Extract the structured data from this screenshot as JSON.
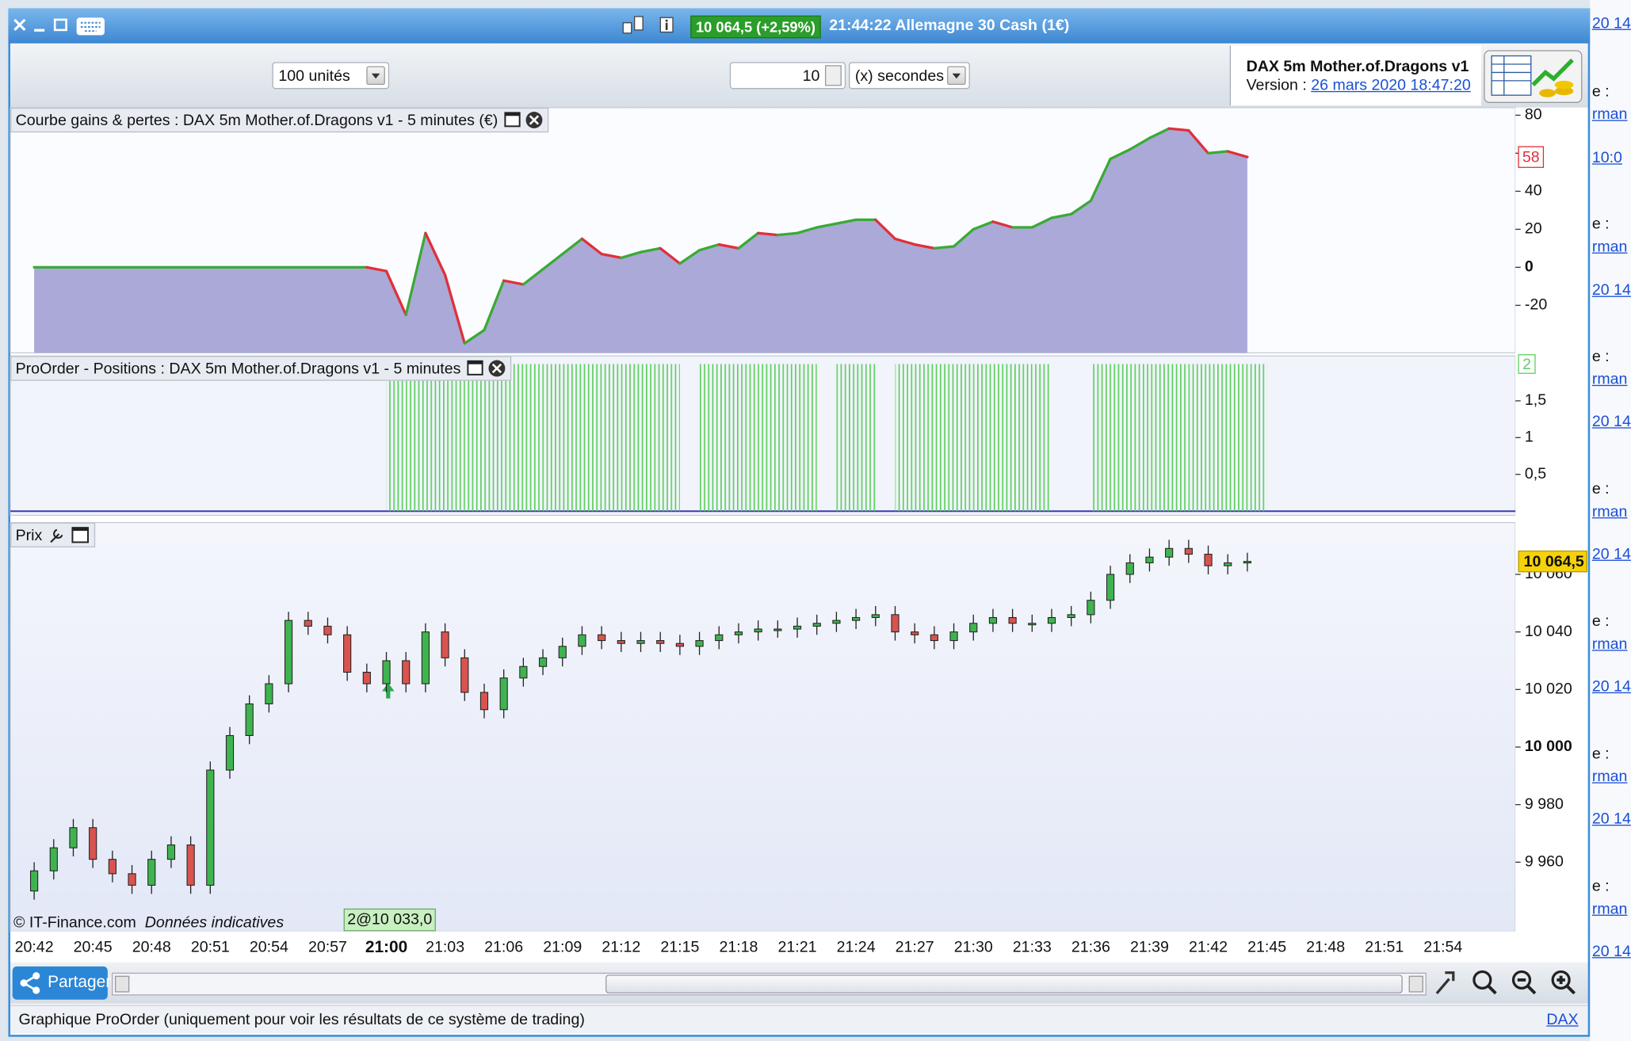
{
  "window": {
    "title_price": "10 064,5 (+2,59%)",
    "title": "21:44:22 Allemagne 30 Cash (1€)"
  },
  "toolbar": {
    "units": "100 unités",
    "interval": "10",
    "interval_unit": "(x) secondes",
    "system_name": "DAX 5m Mother.of.Dragons v1",
    "version_label": "Version :",
    "version_date": "26 mars 2020 18:47:20"
  },
  "chart_data": [
    {
      "type": "area",
      "title": "Courbe gains & pertes : DAX 5m Mother.of.Dragons v1 - 5 minutes (€)",
      "x": [
        "20:42",
        "20:59",
        "21:00",
        "21:01",
        "21:02",
        "21:03",
        "21:04",
        "21:05",
        "21:06",
        "21:07",
        "21:08",
        "21:09",
        "21:10",
        "21:11",
        "21:12",
        "21:13",
        "21:14",
        "21:15",
        "21:16",
        "21:17",
        "21:18",
        "21:19",
        "21:20",
        "21:21",
        "21:22",
        "21:23",
        "21:24",
        "21:25",
        "21:26",
        "21:27",
        "21:28",
        "21:29",
        "21:30",
        "21:31",
        "21:32",
        "21:33",
        "21:34",
        "21:35",
        "21:36",
        "21:37",
        "21:38",
        "21:39",
        "21:40",
        "21:41",
        "21:42",
        "21:43",
        "21:44"
      ],
      "series": [
        {
          "values": [
            0,
            0,
            -2,
            -25,
            18,
            -4,
            -40,
            -33,
            -7,
            -9,
            -1,
            7,
            15,
            7,
            5,
            8,
            10,
            2,
            9,
            12,
            10,
            18,
            17,
            18,
            21,
            23,
            25,
            25,
            15,
            12,
            10,
            11,
            20,
            24,
            21,
            21,
            26,
            28,
            35,
            57,
            62,
            68,
            73,
            72,
            60,
            61,
            58
          ],
          "up_color": "#3aaa35",
          "down_color": "#e0303a",
          "fill": "#aaa9d8"
        }
      ],
      "ylim": [
        -45,
        84
      ],
      "yticks": [
        -20,
        0,
        20,
        40,
        60,
        80
      ]
    },
    {
      "type": "bar",
      "title": "ProOrder - Positions : DAX 5m Mother.of.Dragons v1 - 5 minutes",
      "x": [
        "21:00",
        "21:01",
        "21:02",
        "21:03",
        "21:04",
        "21:05",
        "21:06",
        "21:07",
        "21:08",
        "21:09",
        "21:10",
        "21:11",
        "21:12",
        "21:13",
        "21:14",
        "21:15",
        "21:16",
        "21:17",
        "21:18",
        "21:19",
        "21:20",
        "21:21",
        "21:22",
        "21:23",
        "21:24",
        "21:25",
        "21:26",
        "21:27",
        "21:28",
        "21:29",
        "21:30",
        "21:31",
        "21:32",
        "21:33",
        "21:34",
        "21:35",
        "21:36",
        "21:37",
        "21:38",
        "21:39",
        "21:40",
        "21:41",
        "21:42",
        "21:43",
        "21:44"
      ],
      "values": [
        2,
        2,
        2,
        2,
        2,
        2,
        2,
        2,
        2,
        2,
        2,
        2,
        2,
        2,
        2,
        0,
        2,
        2,
        2,
        2,
        2,
        2,
        0,
        2,
        2,
        0,
        2,
        2,
        2,
        2,
        2,
        2,
        2,
        2,
        0,
        0,
        2,
        2,
        2,
        2,
        2,
        2,
        2,
        2,
        2
      ],
      "color": "#5fcf5f",
      "ylim": [
        0,
        2.11
      ],
      "yticks": [
        {
          "value": 0.5,
          "label": "0,5"
        },
        1,
        {
          "value": 1.5,
          "label": "1,5"
        }
      ]
    },
    {
      "type": "candlestick",
      "title": "Prix",
      "x": [
        "20:42",
        "20:43",
        "20:44",
        "20:45",
        "20:46",
        "20:47",
        "20:48",
        "20:49",
        "20:50",
        "20:51",
        "20:52",
        "20:53",
        "20:54",
        "20:55",
        "20:56",
        "20:57",
        "20:58",
        "20:59",
        "21:00",
        "21:01",
        "21:02",
        "21:03",
        "21:04",
        "21:05",
        "21:06",
        "21:07",
        "21:08",
        "21:09",
        "21:10",
        "21:11",
        "21:12",
        "21:13",
        "21:14",
        "21:15",
        "21:16",
        "21:17",
        "21:18",
        "21:19",
        "21:20",
        "21:21",
        "21:22",
        "21:23",
        "21:24",
        "21:25",
        "21:26",
        "21:27",
        "21:28",
        "21:29",
        "21:30",
        "21:31",
        "21:32",
        "21:33",
        "21:34",
        "21:35",
        "21:36",
        "21:37",
        "21:38",
        "21:39",
        "21:40",
        "21:41",
        "21:42",
        "21:43",
        "21:44"
      ],
      "open": [
        9950,
        9957,
        9965,
        9972,
        9961,
        9956,
        9952,
        9961,
        9966,
        9952,
        9992,
        10004,
        10015,
        10022,
        10044,
        10042,
        10039,
        10026,
        10022,
        10030,
        10022,
        10040,
        10031,
        10019,
        10013,
        10024,
        10028,
        10031,
        10035,
        10039,
        10037,
        10036,
        10037,
        10036,
        10035,
        10037,
        10039,
        10040,
        10041,
        10041,
        10042,
        10043,
        10044,
        10045,
        10046,
        10040,
        10039,
        10037,
        10040,
        10043,
        10045,
        10043,
        10043,
        10045,
        10046,
        10051,
        10060,
        10064,
        10066,
        10069,
        10067,
        10063,
        10064
      ],
      "high": [
        9960,
        9968,
        9975,
        9975,
        9964,
        9959,
        9964,
        9969,
        9969,
        9995,
        10007,
        10018,
        10025,
        10047,
        10047,
        10045,
        10042,
        10029,
        10033,
        10033,
        10043,
        10043,
        10034,
        10022,
        10027,
        10031,
        10034,
        10038,
        10042,
        10042,
        10040,
        10040,
        10040,
        10039,
        10040,
        10042,
        10043,
        10044,
        10044,
        10045,
        10046,
        10047,
        10048,
        10049,
        10049,
        10043,
        10042,
        10043,
        10046,
        10048,
        10048,
        10046,
        10048,
        10049,
        10054,
        10063,
        10067,
        10069,
        10072,
        10072,
        10070,
        10067,
        10067.5
      ],
      "low": [
        9947,
        9954,
        9962,
        9958,
        9953,
        9949,
        9949,
        9958,
        9949,
        9949,
        9989,
        10001,
        10012,
        10019,
        10039,
        10036,
        10023,
        10019,
        10019,
        10019,
        10019,
        10028,
        10016,
        10010,
        10010,
        10021,
        10025,
        10028,
        10032,
        10034,
        10033,
        10033,
        10033,
        10032,
        10032,
        10034,
        10036,
        10037,
        10038,
        10038,
        10039,
        10040,
        10041,
        10042,
        10037,
        10036,
        10034,
        10034,
        10037,
        10040,
        10040,
        10040,
        10040,
        10042,
        10043,
        10048,
        10057,
        10061,
        10063,
        10064,
        10060,
        10060,
        10061
      ],
      "close": [
        9957,
        9965,
        9972,
        9961,
        9956,
        9952,
        9961,
        9966,
        9952,
        9992,
        10004,
        10015,
        10022,
        10044,
        10042,
        10039,
        10026,
        10022,
        10030,
        10022,
        10040,
        10031,
        10019,
        10013,
        10024,
        10028,
        10031,
        10035,
        10039,
        10037,
        10036,
        10037,
        10036,
        10035,
        10037,
        10039,
        10040,
        10041,
        10041,
        10042,
        10043,
        10044,
        10045,
        10046,
        10040,
        10039,
        10037,
        10040,
        10043,
        10045,
        10043,
        10043,
        10045,
        10046,
        10051,
        10060,
        10064,
        10066,
        10069,
        10067,
        10063,
        10064,
        10064.5
      ],
      "up_color": "#3fb34f",
      "down_color": "#d9534f",
      "last_value_label": "10 064,5",
      "annotation": "2@10 033,0",
      "ylim": [
        9936,
        10078
      ],
      "yticks": [
        {
          "value": 9960,
          "label": "9 960"
        },
        {
          "value": 9980,
          "label": "9 980"
        },
        {
          "value": 10000,
          "label": "10 000"
        },
        {
          "value": 10020,
          "label": "10 020"
        },
        {
          "value": 10040,
          "label": "10 040"
        },
        {
          "value": 10060,
          "label": "10 060"
        }
      ],
      "xlim": [
        "20:40:47",
        "21:57:42"
      ],
      "xticks": [
        "20:42",
        "20:45",
        "20:48",
        "20:51",
        "20:54",
        "20:57",
        "21:00",
        "21:03",
        "21:06",
        "21:09",
        "21:12",
        "21:15",
        "21:18",
        "21:21",
        "21:24",
        "21:27",
        "21:30",
        "21:33",
        "21:36",
        "21:39",
        "21:42",
        "21:45",
        "21:48",
        "21:51",
        "21:54"
      ]
    }
  ],
  "footer": {
    "copyright": "© IT-Finance.com",
    "disclaimer": "Données indicatives",
    "share": "Partager",
    "status": "Graphique ProOrder (uniquement pour voir les résultats de ce système de trading)",
    "instrument": "DAX"
  },
  "side_panel": {
    "fragments": [
      "20 14",
      "e :",
      "rman",
      "10:0",
      "e :",
      "rman",
      "20 14",
      "e :",
      "rman",
      "20 14",
      "e :",
      "rman",
      "20 14",
      "e :",
      "rman",
      "20 14",
      "e :",
      "rman",
      "20 14",
      "e :",
      "rman",
      "20 14"
    ]
  }
}
